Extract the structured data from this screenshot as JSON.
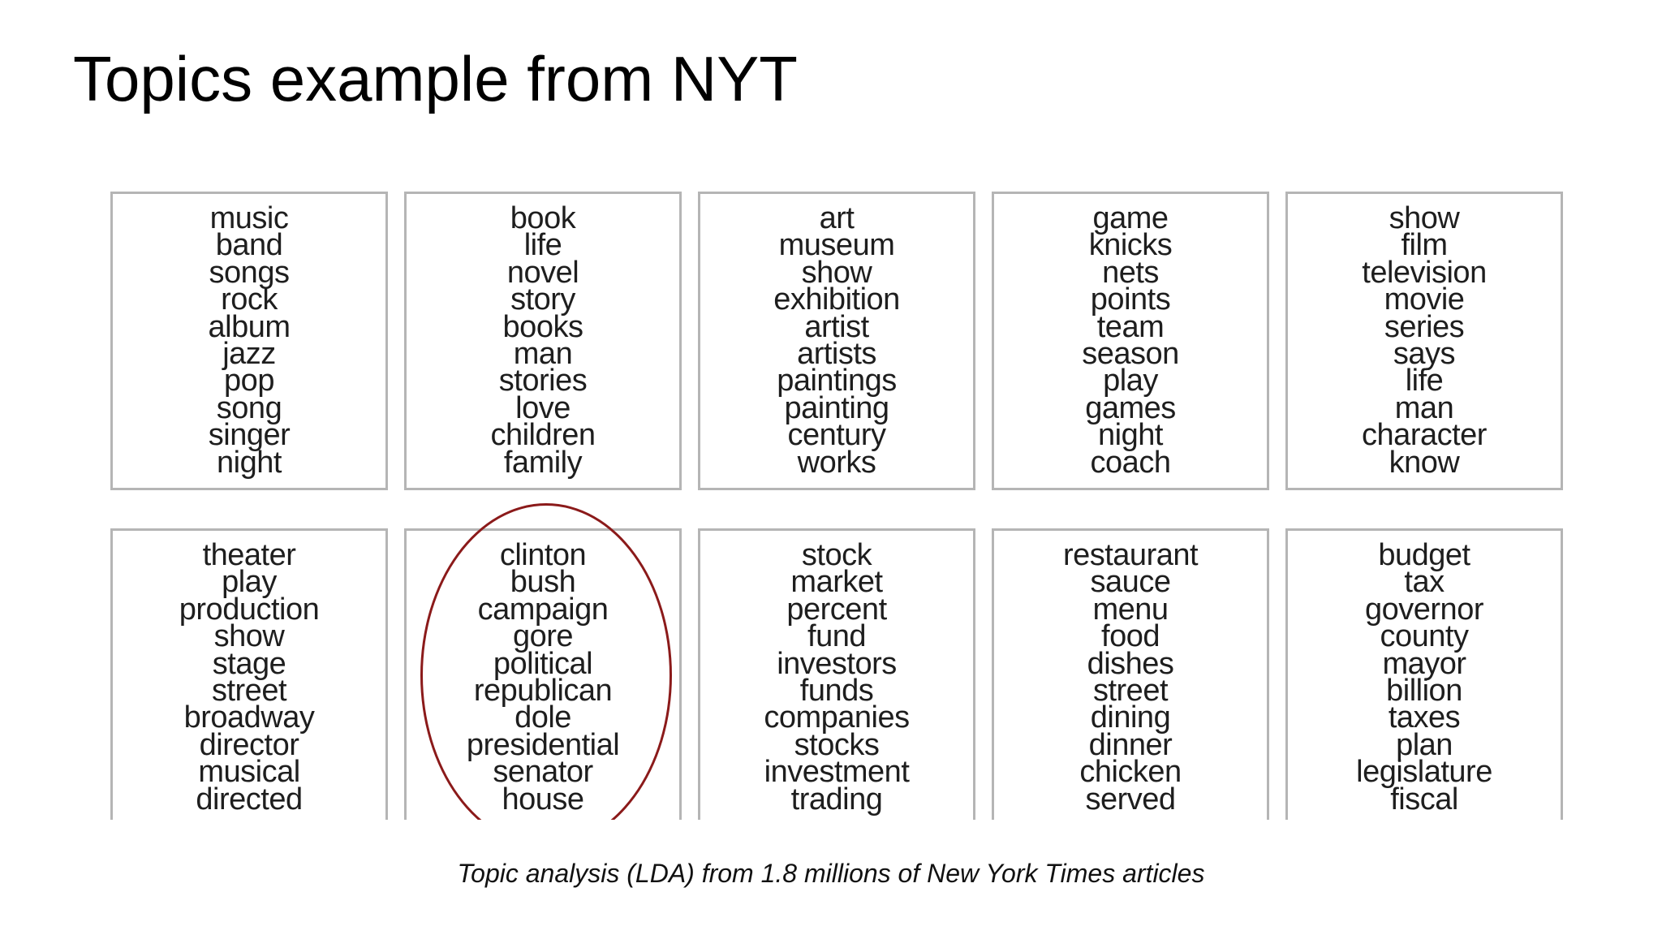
{
  "slide": {
    "title": "Topics example from NYT",
    "caption": "Topic analysis (LDA) from 1.8 millions of New York Times articles"
  },
  "topics": [
    {
      "words": [
        "music",
        "band",
        "songs",
        "rock",
        "album",
        "jazz",
        "pop",
        "song",
        "singer",
        "night"
      ]
    },
    {
      "words": [
        "book",
        "life",
        "novel",
        "story",
        "books",
        "man",
        "stories",
        "love",
        "children",
        "family"
      ]
    },
    {
      "words": [
        "art",
        "museum",
        "show",
        "exhibition",
        "artist",
        "artists",
        "paintings",
        "painting",
        "century",
        "works"
      ]
    },
    {
      "words": [
        "game",
        "knicks",
        "nets",
        "points",
        "team",
        "season",
        "play",
        "games",
        "night",
        "coach"
      ]
    },
    {
      "words": [
        "show",
        "film",
        "television",
        "movie",
        "series",
        "says",
        "life",
        "man",
        "character",
        "know"
      ]
    },
    {
      "words": [
        "theater",
        "play",
        "production",
        "show",
        "stage",
        "street",
        "broadway",
        "director",
        "musical",
        "directed"
      ]
    },
    {
      "words": [
        "clinton",
        "bush",
        "campaign",
        "gore",
        "political",
        "republican",
        "dole",
        "presidential",
        "senator",
        "house"
      ]
    },
    {
      "words": [
        "stock",
        "market",
        "percent",
        "fund",
        "investors",
        "funds",
        "companies",
        "stocks",
        "investment",
        "trading"
      ]
    },
    {
      "words": [
        "restaurant",
        "sauce",
        "menu",
        "food",
        "dishes",
        "street",
        "dining",
        "dinner",
        "chicken",
        "served"
      ]
    },
    {
      "words": [
        "budget",
        "tax",
        "governor",
        "county",
        "mayor",
        "billion",
        "taxes",
        "plan",
        "legislature",
        "fiscal"
      ]
    }
  ],
  "highlight": {
    "topic_index": 6,
    "color": "#8b1a1a"
  }
}
